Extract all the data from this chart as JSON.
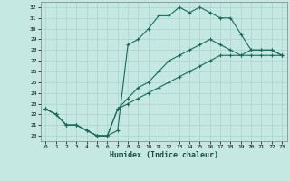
{
  "xlabel": "Humidex (Indice chaleur)",
  "xlim": [
    -0.5,
    23.5
  ],
  "ylim": [
    19.5,
    32.5
  ],
  "xticks": [
    0,
    1,
    2,
    3,
    4,
    5,
    6,
    7,
    8,
    9,
    10,
    11,
    12,
    13,
    14,
    15,
    16,
    17,
    18,
    19,
    20,
    21,
    22,
    23
  ],
  "yticks": [
    20,
    21,
    22,
    23,
    24,
    25,
    26,
    27,
    28,
    29,
    30,
    31,
    32
  ],
  "background_color": "#c5e8e2",
  "grid_color": "#a8d4cc",
  "line_color": "#1a6b5a",
  "lines": [
    {
      "x": [
        0,
        1,
        2,
        3,
        4,
        5,
        6,
        7,
        8,
        9,
        10,
        11,
        12,
        13,
        14,
        15,
        16,
        17,
        18,
        19,
        20,
        21,
        22,
        23
      ],
      "y": [
        22.5,
        22,
        21,
        21,
        20.5,
        20,
        20,
        20.5,
        28.5,
        29,
        30,
        31.2,
        31.2,
        32,
        31.5,
        32,
        31.5,
        31,
        31,
        29.5,
        28,
        28,
        28,
        27.5
      ]
    },
    {
      "x": [
        0,
        1,
        2,
        3,
        4,
        5,
        6,
        7,
        8,
        9,
        10,
        11,
        12,
        13,
        14,
        15,
        16,
        17,
        18,
        19,
        20,
        21,
        22,
        23
      ],
      "y": [
        22.5,
        22,
        21,
        21,
        20.5,
        20,
        20,
        22.5,
        23.5,
        24.5,
        25,
        26,
        27,
        27.5,
        28,
        28.5,
        29,
        28.5,
        28,
        27.5,
        27.5,
        27.5,
        27.5,
        27.5
      ]
    },
    {
      "x": [
        0,
        1,
        2,
        3,
        4,
        5,
        6,
        7,
        8,
        9,
        10,
        11,
        12,
        13,
        14,
        15,
        16,
        17,
        18,
        19,
        20,
        21,
        22,
        23
      ],
      "y": [
        22.5,
        22,
        21,
        21,
        20.5,
        20,
        20,
        22.5,
        23,
        23.5,
        24,
        24.5,
        25,
        25.5,
        26,
        26.5,
        27,
        27.5,
        27.5,
        27.5,
        28,
        28,
        28,
        27.5
      ]
    }
  ]
}
